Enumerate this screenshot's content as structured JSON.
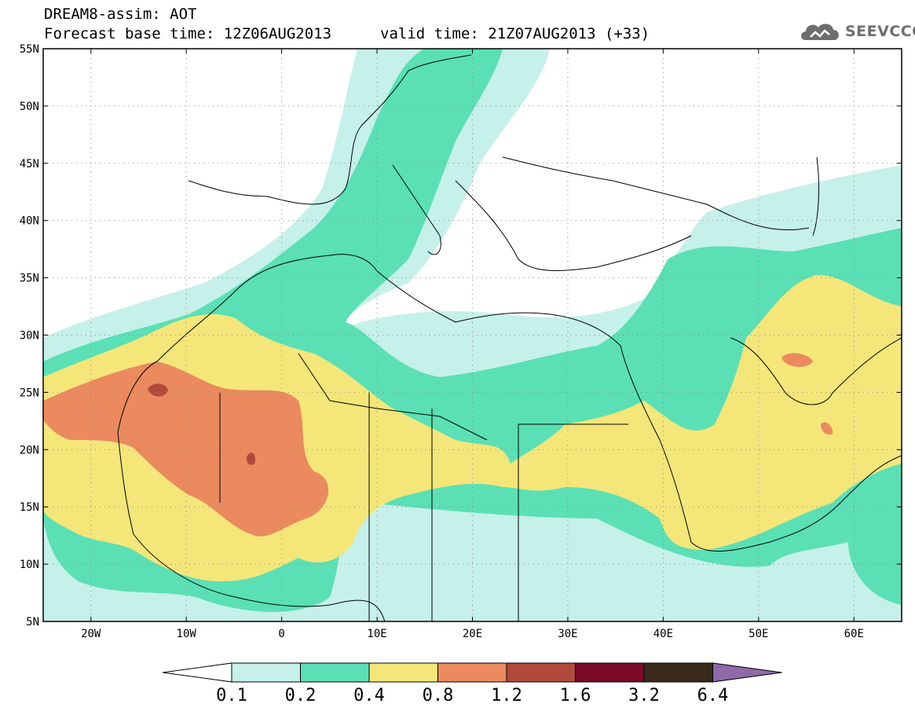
{
  "header": {
    "title_line1": "DREAM8-assim: AOT",
    "title_line2": "Forecast base time: 12Z06AUG2013",
    "valid_time": "valid time: 21Z07AUG2013 (+33)",
    "logo_text": "SEEVCCC",
    "logo_icon": "cloud-logo-icon"
  },
  "map": {
    "lon_range": [
      -25,
      65
    ],
    "lat_range": [
      5,
      55
    ],
    "x_ticks": [
      {
        "lon": -20,
        "label": "20W"
      },
      {
        "lon": -10,
        "label": "10W"
      },
      {
        "lon": 0,
        "label": "0"
      },
      {
        "lon": 10,
        "label": "10E"
      },
      {
        "lon": 20,
        "label": "20E"
      },
      {
        "lon": 30,
        "label": "30E"
      },
      {
        "lon": 40,
        "label": "40E"
      },
      {
        "lon": 50,
        "label": "50E"
      },
      {
        "lon": 60,
        "label": "60E"
      }
    ],
    "y_ticks": [
      {
        "lat": 55,
        "label": "55N"
      },
      {
        "lat": 50,
        "label": "50N"
      },
      {
        "lat": 45,
        "label": "45N"
      },
      {
        "lat": 40,
        "label": "40N"
      },
      {
        "lat": 35,
        "label": "35N"
      },
      {
        "lat": 30,
        "label": "30N"
      },
      {
        "lat": 25,
        "label": "25N"
      },
      {
        "lat": 20,
        "label": "20N"
      },
      {
        "lat": 15,
        "label": "15N"
      },
      {
        "lat": 10,
        "label": "10N"
      },
      {
        "lat": 5,
        "label": "5N"
      }
    ],
    "grid": "dotted"
  },
  "colorbar": {
    "labels": [
      "0.1",
      "0.2",
      "0.4",
      "0.8",
      "1.2",
      "1.6",
      "3.2",
      "6.4"
    ],
    "colors": [
      "#c6f0ea",
      "#5ae0b4",
      "#f5e67a",
      "#ea8a5e",
      "#b24a3c",
      "#7a0a28",
      "#3a2a1a",
      "#8e6aa8"
    ],
    "below_color": "#ffffff"
  },
  "levels": {
    "c1": "#c6f0ea",
    "c2": "#5ae0b4",
    "c3": "#f5e67a",
    "c4": "#ea8a5e",
    "c5": "#b24a3c"
  }
}
